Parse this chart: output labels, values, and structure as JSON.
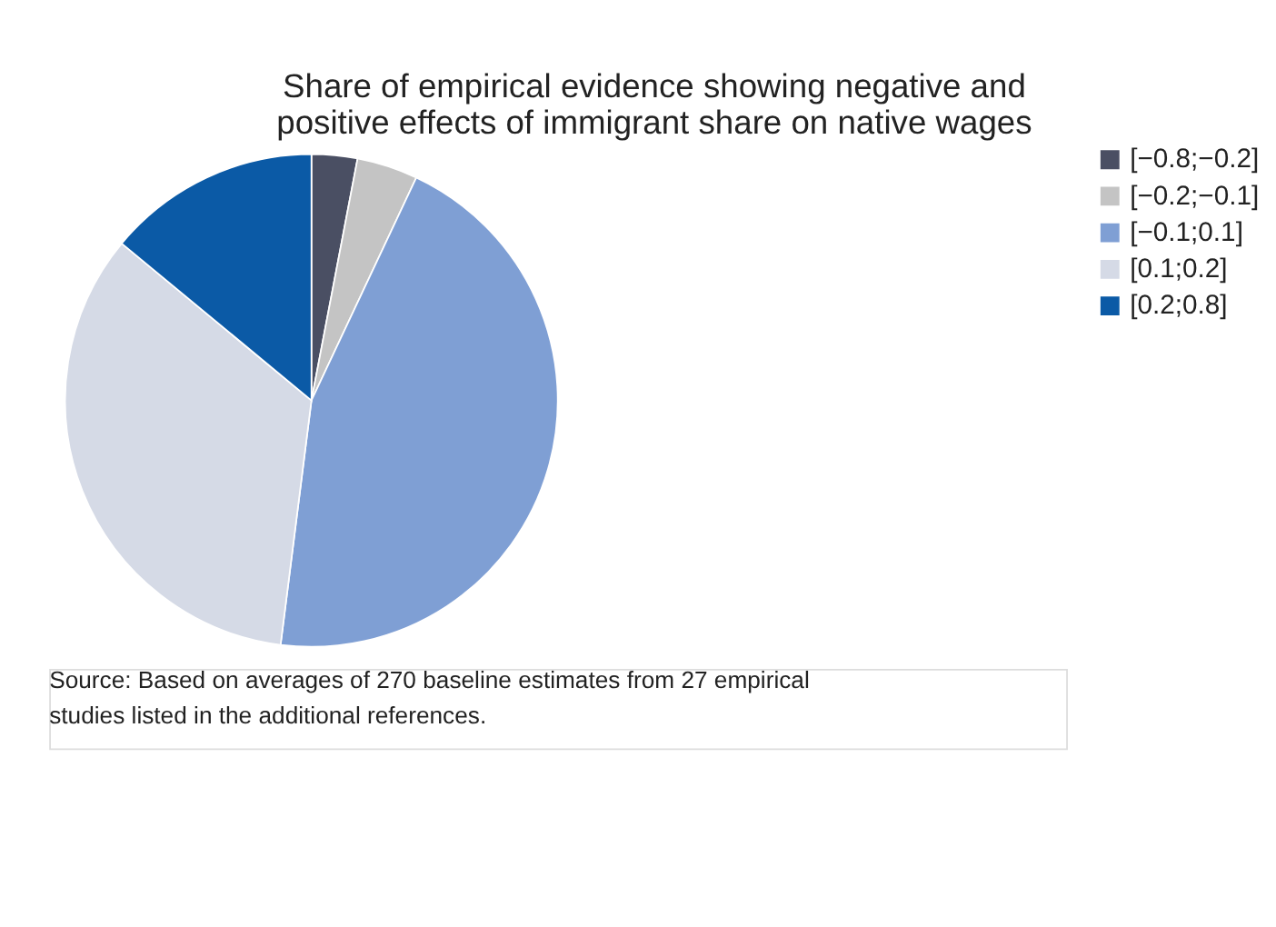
{
  "chart_data": {
    "type": "pie",
    "title": "Share of empirical evidence showing negative and positive effects of immigrant share on native wages",
    "categories": [
      "[−0.8;−0.2]",
      "[−0.2;−0.1]",
      "[−0.1;0.1]",
      "[0.1;0.2]",
      "[0.2;0.8]"
    ],
    "values": [
      3,
      4,
      45,
      34,
      14
    ],
    "colors": [
      "#4a4f63",
      "#c4c4c4",
      "#7f9fd4",
      "#d5dae6",
      "#0b5aa6"
    ],
    "legend": "right",
    "annotations": [
      "Source: Based on averages of 270 baseline estimates from 27 empirical studies listed in the additional references."
    ]
  }
}
